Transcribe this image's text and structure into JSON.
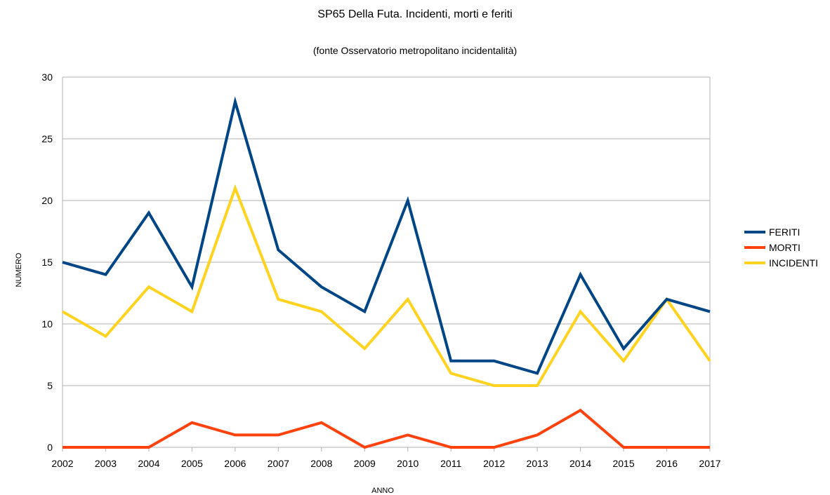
{
  "chart_data": {
    "type": "line",
    "title": "SP65 Della Futa. Incidenti, morti e feriti",
    "subtitle": "(fonte Osservatorio metropolitano incidentalità)",
    "xlabel": "ANNO",
    "ylabel": "NUMERO",
    "categories": [
      "2002",
      "2003",
      "2004",
      "2005",
      "2006",
      "2007",
      "2008",
      "2009",
      "2010",
      "2011",
      "2012",
      "2013",
      "2014",
      "2015",
      "2016",
      "2017"
    ],
    "ylim": [
      0,
      30
    ],
    "yticks": [
      0,
      5,
      10,
      15,
      20,
      25,
      30
    ],
    "grid": true,
    "legend_position": "right",
    "series": [
      {
        "name": "FERITI",
        "color": "#004586",
        "values": [
          15,
          14,
          19,
          13,
          28,
          16,
          13,
          11,
          20,
          7,
          7,
          6,
          14,
          8,
          12,
          11
        ]
      },
      {
        "name": "MORTI",
        "color": "#ff420e",
        "values": [
          0,
          0,
          0,
          2,
          1,
          1,
          2,
          0,
          1,
          0,
          0,
          1,
          3,
          0,
          0,
          0
        ]
      },
      {
        "name": "INCIDENTI",
        "color": "#ffd320",
        "values": [
          11,
          9,
          13,
          11,
          21,
          12,
          11,
          8,
          12,
          6,
          5,
          5,
          11,
          7,
          12,
          7
        ]
      }
    ]
  }
}
